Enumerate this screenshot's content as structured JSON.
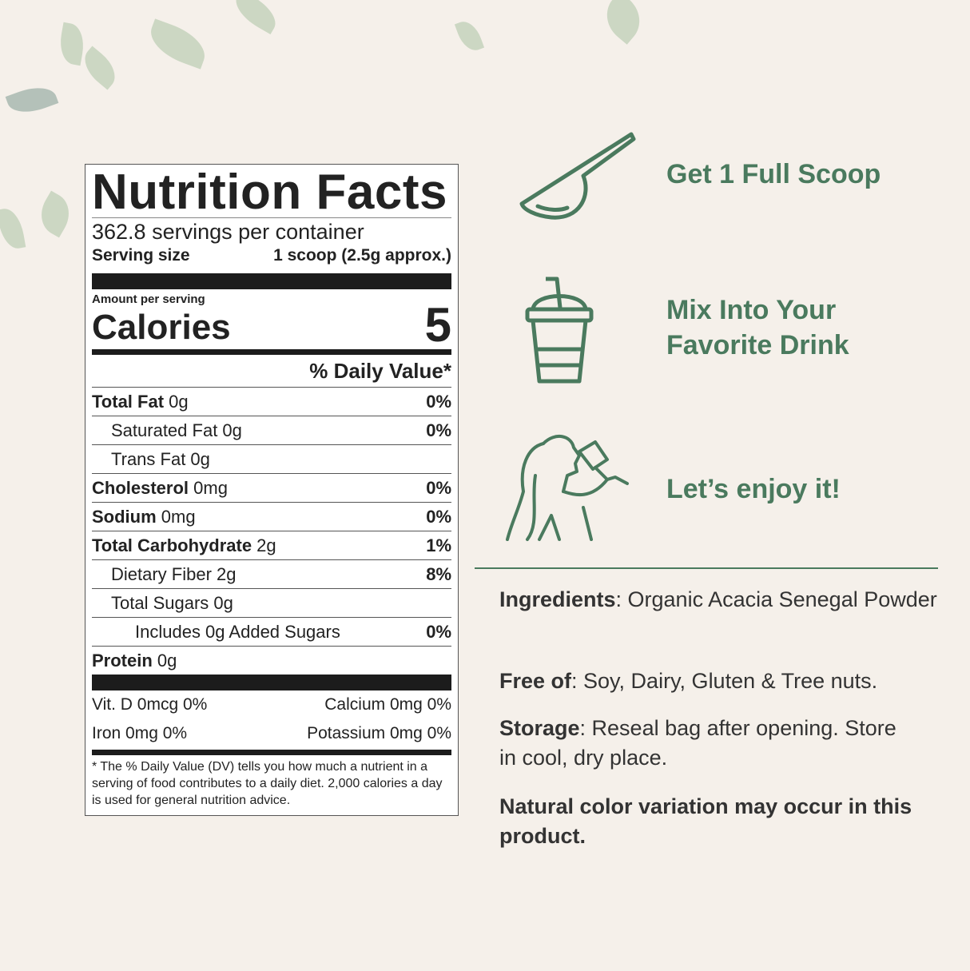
{
  "nutrition": {
    "title": "Nutrition Facts",
    "servings": "362.8 servings per container",
    "serving_size_label": "Serving size",
    "serving_size_value": "1 scoop (2.5g approx.)",
    "amount_per_serving": "Amount per serving",
    "calories_label": "Calories",
    "calories_value": "5",
    "dv_header": "% Daily Value*",
    "rows": [
      {
        "name": "Total Fat",
        "amount": " 0g",
        "pct": "0%"
      },
      {
        "name": "Saturated Fat 0g",
        "amount": "",
        "pct": "0%"
      },
      {
        "name": "Trans Fat 0g",
        "amount": "",
        "pct": ""
      },
      {
        "name": "Cholesterol",
        "amount": " 0mg",
        "pct": "0%"
      },
      {
        "name": "Sodium",
        "amount": " 0mg",
        "pct": "0%"
      },
      {
        "name": "Total Carbohydrate",
        "amount": " 2g",
        "pct": "1%"
      },
      {
        "name": "Dietary Fiber 2g",
        "amount": "",
        "pct": "8%"
      },
      {
        "name": "Total Sugars 0g",
        "amount": "",
        "pct": ""
      },
      {
        "name": "Includes 0g Added Sugars",
        "amount": "",
        "pct": "0%"
      },
      {
        "name": "Protein",
        "amount": " 0g",
        "pct": ""
      }
    ],
    "vitamins": [
      [
        "Vit. D 0mcg 0%",
        "Calcium 0mg 0%"
      ],
      [
        "Iron 0mg 0%",
        "Potassium 0mg 0%"
      ]
    ],
    "footnote": "* The % Daily Value (DV) tells you how much a nutrient in a serving of food contributes to a daily diet. 2,000 calories a day is used for general nutrition advice."
  },
  "steps": [
    {
      "icon": "scoop-icon",
      "text": "Get 1 Full Scoop"
    },
    {
      "icon": "drink-cup-icon",
      "text": "Mix Into Your Favorite Drink"
    },
    {
      "icon": "woman-drinking-icon",
      "text": "Let’s enjoy it!"
    }
  ],
  "info": {
    "ingredients_label": "Ingredients",
    "ingredients_value": ": Organic Acacia Senegal Powder",
    "free_label": "Free of",
    "free_value": ": Soy, Dairy, Gluten & Tree nuts.",
    "storage_label": "Storage",
    "storage_value": ": Reseal bag after opening. Store in cool, dry place.",
    "note": "Natural color variation may occur in this product."
  },
  "colors": {
    "accent": "#4a7a5e",
    "background": "#f5f0ea"
  }
}
